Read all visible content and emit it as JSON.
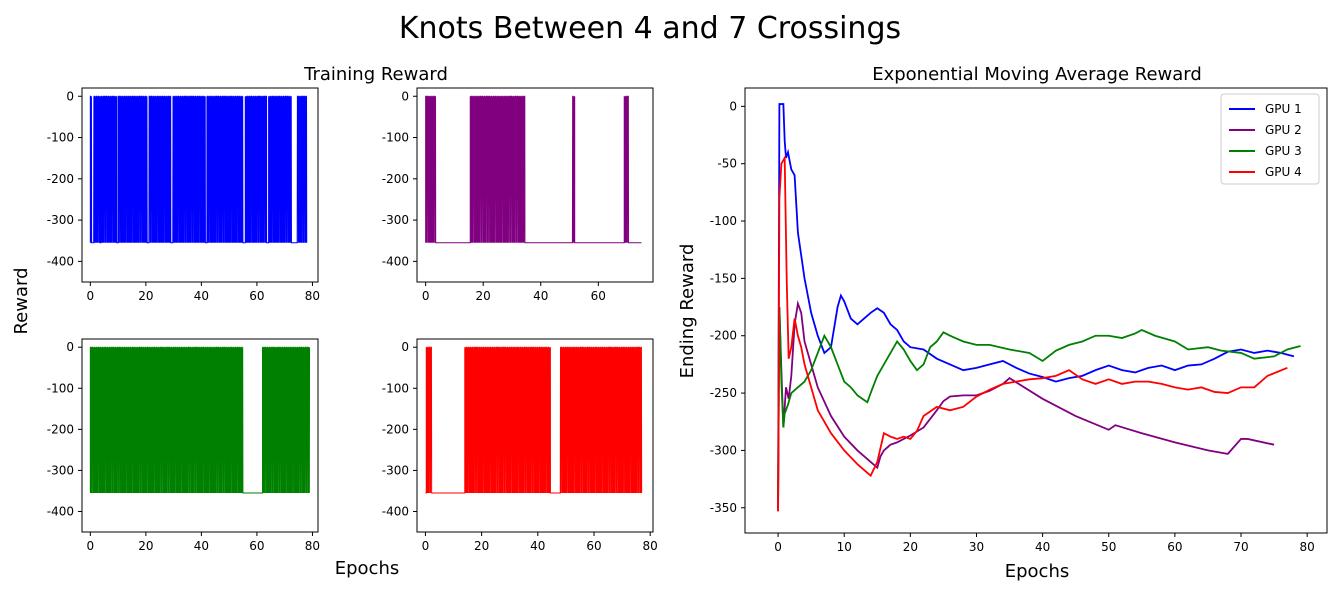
{
  "figure": {
    "title": "Knots Between 4 and 7 Crossings",
    "left_title": "Training Reward",
    "left_ylabel": "Reward",
    "left_xlabel": "Epochs"
  },
  "chart_data": [
    {
      "type": "line",
      "panel": "training-gpu-1",
      "color": "#0000ff",
      "xlim": [
        -3,
        82
      ],
      "ylim": [
        -450,
        20
      ],
      "xticks": [
        "0",
        "20",
        "40",
        "60",
        "80"
      ],
      "yticks": [
        "0",
        "-100",
        "-200",
        "-300",
        "-400"
      ],
      "xtick_values": [
        0,
        20,
        40,
        60,
        80
      ],
      "ytick_values": [
        0,
        -100,
        -200,
        -300,
        -400
      ],
      "x_range": [
        0,
        78
      ],
      "high": 0,
      "low": -355,
      "segments": [
        [
          0,
          0.5,
          1
        ],
        [
          0.5,
          1.2,
          0
        ],
        [
          1.2,
          3.5,
          1
        ],
        [
          3.5,
          3.8,
          0
        ],
        [
          3.8,
          9.5,
          1
        ],
        [
          9.5,
          10.0,
          0
        ],
        [
          10.0,
          20.5,
          1
        ],
        [
          20.5,
          21.1,
          0
        ],
        [
          21.1,
          29.0,
          1
        ],
        [
          29.0,
          29.7,
          0
        ],
        [
          29.7,
          41.5,
          1
        ],
        [
          41.5,
          42.0,
          0
        ],
        [
          42.0,
          55.0,
          1
        ],
        [
          55.0,
          55.8,
          0
        ],
        [
          55.8,
          63.5,
          1
        ],
        [
          63.5,
          64.2,
          0
        ],
        [
          64.2,
          72.5,
          1
        ],
        [
          72.5,
          74.5,
          0
        ],
        [
          74.5,
          78,
          1
        ]
      ]
    },
    {
      "type": "line",
      "panel": "training-gpu-2",
      "color": "#800080",
      "xlim": [
        -3,
        79
      ],
      "ylim": [
        -450,
        20
      ],
      "xticks": [
        "0",
        "20",
        "40",
        "60"
      ],
      "yticks": [
        "0",
        "-100",
        "-200",
        "-300",
        "-400"
      ],
      "xtick_values": [
        0,
        20,
        40,
        60
      ],
      "ytick_values": [
        0,
        -100,
        -200,
        -300,
        -400
      ],
      "x_range": [
        0,
        75
      ],
      "high": 0,
      "low": -355,
      "segments": [
        [
          0,
          3.5,
          1
        ],
        [
          3.5,
          15.5,
          0
        ],
        [
          15.5,
          34.5,
          1
        ],
        [
          34.5,
          51.0,
          0
        ],
        [
          51.0,
          51.8,
          1
        ],
        [
          51.8,
          69.0,
          0
        ],
        [
          69.0,
          70.5,
          1
        ],
        [
          70.5,
          75,
          0
        ]
      ]
    },
    {
      "type": "line",
      "panel": "training-gpu-3",
      "color": "#008000",
      "xlim": [
        -3,
        82
      ],
      "ylim": [
        -450,
        20
      ],
      "xticks": [
        "0",
        "20",
        "40",
        "60",
        "80"
      ],
      "yticks": [
        "0",
        "-100",
        "-200",
        "-300",
        "-400"
      ],
      "xtick_values": [
        0,
        20,
        40,
        60,
        80
      ],
      "ytick_values": [
        0,
        -100,
        -200,
        -300,
        -400
      ],
      "x_range": [
        0,
        79
      ],
      "high": 0,
      "low": -355,
      "segments": [
        [
          0,
          55.0,
          1
        ],
        [
          55.0,
          62.0,
          0
        ],
        [
          62.0,
          79,
          1
        ]
      ]
    },
    {
      "type": "line",
      "panel": "training-gpu-4",
      "color": "#ff0000",
      "xlim": [
        -3,
        81
      ],
      "ylim": [
        -450,
        20
      ],
      "xticks": [
        "0",
        "20",
        "40",
        "60",
        "80"
      ],
      "yticks": [
        "0",
        "-100",
        "-200",
        "-300",
        "-400"
      ],
      "xtick_values": [
        0,
        20,
        40,
        60,
        80
      ],
      "ytick_values": [
        0,
        -100,
        -200,
        -300,
        -400
      ],
      "x_range": [
        0,
        77
      ],
      "high": 0,
      "low": -355,
      "segments": [
        [
          0,
          0.3,
          0
        ],
        [
          0.3,
          2.3,
          1
        ],
        [
          2.3,
          14.0,
          0
        ],
        [
          14.0,
          44.5,
          1
        ],
        [
          44.5,
          48.0,
          0
        ],
        [
          48.0,
          77,
          1
        ]
      ]
    },
    {
      "type": "line",
      "panel": "ema-reward",
      "title": "Exponential Moving Average Reward",
      "xlabel": "Epochs",
      "ylabel": "Ending Reward",
      "xlim": [
        -5,
        83
      ],
      "ylim": [
        -372,
        16
      ],
      "xticks": [
        "0",
        "10",
        "20",
        "30",
        "40",
        "50",
        "60",
        "70",
        "80"
      ],
      "yticks": [
        "0",
        "-50",
        "-100",
        "-150",
        "-200",
        "-250",
        "-300",
        "-350"
      ],
      "xtick_values": [
        0,
        10,
        20,
        30,
        40,
        50,
        60,
        70,
        80
      ],
      "ytick_values": [
        0,
        -50,
        -100,
        -150,
        -200,
        -250,
        -300,
        -350
      ],
      "legend": "top-right",
      "series": [
        {
          "name": "GPU 1",
          "color": "#0000ff",
          "x": [
            0,
            0.2,
            0.8,
            1.0,
            1.2,
            1.5,
            2.0,
            2.5,
            3.0,
            3.5,
            4.0,
            5.0,
            6.0,
            7.0,
            8.0,
            9.0,
            9.5,
            10.0,
            11.0,
            12.0,
            13.0,
            14.0,
            15.0,
            16.0,
            17.0,
            18.0,
            19.0,
            20.0,
            22.0,
            24.0,
            26.0,
            28.0,
            30.0,
            32.0,
            34.0,
            36.0,
            38.0,
            40.0,
            42.0,
            44.0,
            46.0,
            48.0,
            50.0,
            52.0,
            54.0,
            56.0,
            58.0,
            60.0,
            62.0,
            64.0,
            66.0,
            68.0,
            70.0,
            72.0,
            74.0,
            76.0,
            78.0
          ],
          "y": [
            -350,
            2,
            2,
            -30,
            -45,
            -40,
            -55,
            -60,
            -110,
            -130,
            -150,
            -180,
            -200,
            -215,
            -210,
            -175,
            -165,
            -170,
            -185,
            -190,
            -185,
            -180,
            -176,
            -180,
            -190,
            -195,
            -205,
            -210,
            -212,
            -220,
            -225,
            -230,
            -228,
            -225,
            -222,
            -228,
            -233,
            -236,
            -240,
            -237,
            -235,
            -230,
            -226,
            -230,
            -232,
            -228,
            -226,
            -230,
            -226,
            -225,
            -220,
            -214,
            -212,
            -215,
            -213,
            -215,
            -218
          ]
        },
        {
          "name": "GPU 2",
          "color": "#800080",
          "x": [
            0,
            0.2,
            0.5,
            0.8,
            1.2,
            1.6,
            2.0,
            2.5,
            3.0,
            3.5,
            4.0,
            6.0,
            8.0,
            10.0,
            12.0,
            14.0,
            15.0,
            15.5,
            16.0,
            17.0,
            18.0,
            19.0,
            20.0,
            22.0,
            24.0,
            25.0,
            26.0,
            28.0,
            30.0,
            32.0,
            34.0,
            35.0,
            40.0,
            45.0,
            50.0,
            51.0,
            55.0,
            60.0,
            65.0,
            68.0,
            70.0,
            71.0,
            75.0
          ],
          "y": [
            -353,
            -175,
            -230,
            -280,
            -245,
            -255,
            -235,
            -190,
            -172,
            -180,
            -205,
            -245,
            -270,
            -288,
            -300,
            -310,
            -315,
            -305,
            -300,
            -295,
            -293,
            -290,
            -287,
            -280,
            -265,
            -257,
            -253,
            -252,
            -252,
            -248,
            -242,
            -237,
            -255,
            -270,
            -282,
            -278,
            -285,
            -293,
            -300,
            -303,
            -290,
            -290,
            -295
          ]
        },
        {
          "name": "GPU 3",
          "color": "#008000",
          "x": [
            0,
            0.2,
            0.5,
            0.8,
            1.0,
            1.5,
            2.0,
            3.0,
            4.0,
            5.0,
            6.0,
            7.0,
            8.0,
            9.0,
            10.0,
            11.0,
            12.0,
            13.0,
            13.5,
            14.0,
            15.0,
            16.0,
            17.0,
            18.0,
            19.0,
            20.0,
            21.0,
            22.0,
            23.0,
            24.0,
            25.0,
            26.0,
            28.0,
            30.0,
            32.0,
            35.0,
            38.0,
            40.0,
            42.0,
            44.0,
            46.0,
            48.0,
            50.0,
            52.0,
            54.0,
            55.0,
            57.0,
            60.0,
            62.0,
            65.0,
            67.0,
            70.0,
            72.0,
            75.0,
            77.0,
            79.0
          ],
          "y": [
            -340,
            -175,
            -240,
            -280,
            -268,
            -260,
            -250,
            -245,
            -240,
            -230,
            -215,
            -200,
            -210,
            -225,
            -240,
            -245,
            -252,
            -256,
            -258,
            -250,
            -235,
            -225,
            -215,
            -205,
            -212,
            -222,
            -230,
            -225,
            -210,
            -205,
            -197,
            -200,
            -205,
            -208,
            -208,
            -212,
            -215,
            -222,
            -213,
            -208,
            -205,
            -200,
            -200,
            -202,
            -198,
            -195,
            -200,
            -205,
            -212,
            -210,
            -213,
            -215,
            -220,
            -218,
            -212,
            -209
          ]
        },
        {
          "name": "GPU 4",
          "color": "#ff0000",
          "x": [
            0,
            0.2,
            0.5,
            1.0,
            1.3,
            1.6,
            2.0,
            2.5,
            3.0,
            3.5,
            4.0,
            5.0,
            6.0,
            8.0,
            10.0,
            12.0,
            14.0,
            15.0,
            16.0,
            17.0,
            18.0,
            19.0,
            20.0,
            21.0,
            22.0,
            24.0,
            26.0,
            28.0,
            30.0,
            32.0,
            34.0,
            36.0,
            38.0,
            40.0,
            42.0,
            44.0,
            46.0,
            48.0,
            50.0,
            52.0,
            54.0,
            56.0,
            58.0,
            60.0,
            62.0,
            64.0,
            66.0,
            68.0,
            70.0,
            72.0,
            74.0,
            77.0
          ],
          "y": [
            -353,
            -80,
            -50,
            -45,
            -150,
            -220,
            -210,
            -185,
            -200,
            -210,
            -225,
            -245,
            -265,
            -285,
            -300,
            -312,
            -322,
            -310,
            -285,
            -288,
            -290,
            -288,
            -290,
            -283,
            -270,
            -262,
            -265,
            -262,
            -253,
            -247,
            -242,
            -240,
            -238,
            -237,
            -235,
            -230,
            -238,
            -242,
            -238,
            -242,
            -240,
            -240,
            -242,
            -245,
            -247,
            -245,
            -249,
            -250,
            -245,
            -245,
            -235,
            -228
          ]
        }
      ]
    }
  ]
}
